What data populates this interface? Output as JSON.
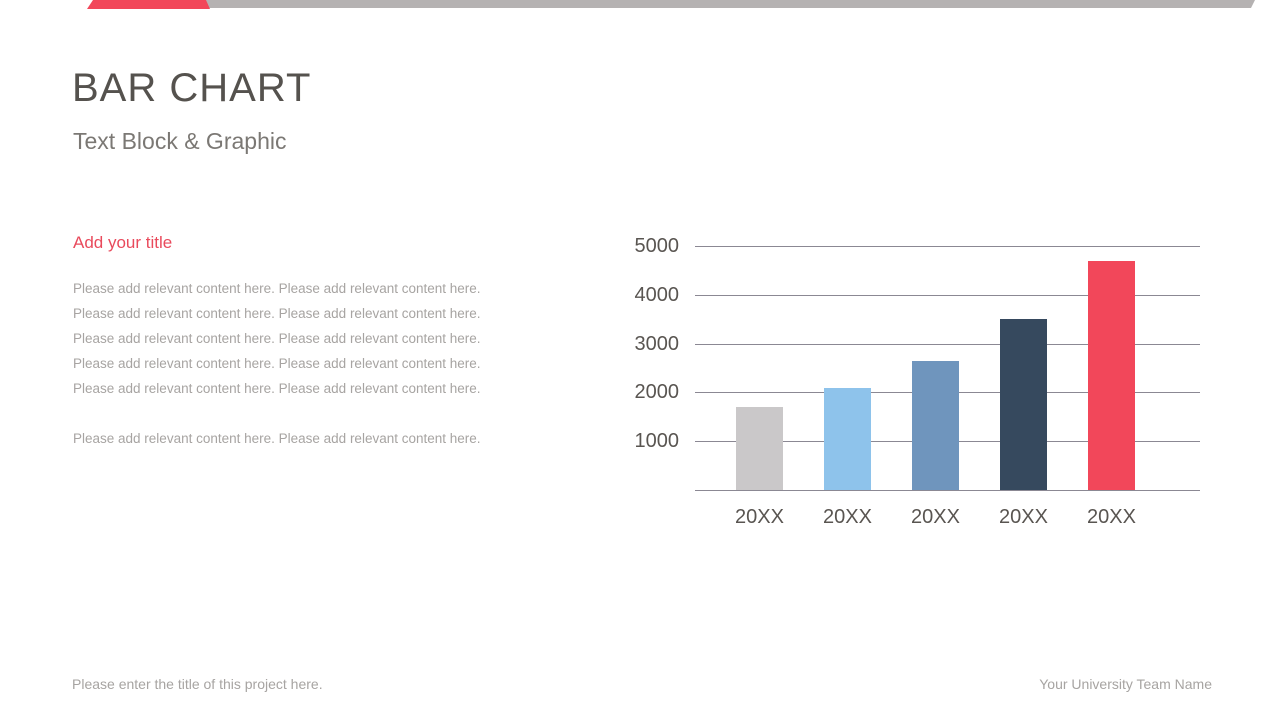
{
  "slide": {
    "title": "BAR CHART",
    "subtitle": "Text Block & Graphic"
  },
  "content": {
    "heading": "Add your title",
    "paragraph1_lines": [
      "Please add relevant content here. Please add relevant content here.",
      "Please add relevant content here. Please add relevant content here.",
      "Please add relevant content here. Please add relevant content here.",
      "Please add relevant content here. Please add relevant content here.",
      "Please add relevant content here. Please add relevant content here."
    ],
    "paragraph2": "Please add relevant content here. Please add relevant content here."
  },
  "footer": {
    "left": "Please enter the title of this project here.",
    "right": "Your University Team Name"
  },
  "colors": {
    "accent_red": "#f2475a",
    "top_bar_gray": "#b5b2b2",
    "title_text": "#55524e",
    "subtitle_text": "#7b7874",
    "body_text": "#a7a4a2",
    "axis_text": "#595551",
    "gridline": "#8b8893"
  },
  "chart_data": {
    "type": "bar",
    "categories": [
      "20XX",
      "20XX",
      "20XX",
      "20XX",
      "20XX"
    ],
    "values": [
      1700,
      2100,
      2650,
      3500,
      4700
    ],
    "bar_colors": [
      "#cac8c9",
      "#8ec3eb",
      "#6f95bd",
      "#36495e",
      "#f2475a"
    ],
    "title": "",
    "xlabel": "",
    "ylabel": "",
    "yticks": [
      1000,
      2000,
      3000,
      4000,
      5000
    ],
    "ylim": [
      0,
      5000
    ],
    "grid": true,
    "legend": false
  }
}
